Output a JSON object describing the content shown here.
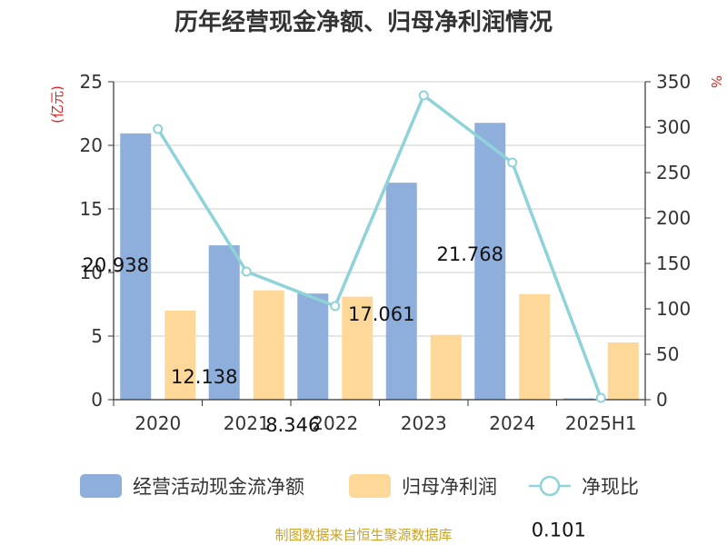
{
  "chart_data": {
    "type": "bar",
    "title": "历年经营现金净额、归母净利润情况",
    "categories": [
      "2020",
      "2021",
      "2022",
      "2023",
      "2024",
      "2025H1"
    ],
    "y_left": {
      "unit": "(亿元)",
      "range": [
        0,
        25
      ],
      "ticks": [
        0,
        5,
        10,
        15,
        20,
        25
      ]
    },
    "y_right": {
      "unit": "%",
      "range": [
        0,
        350
      ],
      "ticks": [
        0,
        50,
        100,
        150,
        200,
        250,
        300,
        350
      ]
    },
    "grid": true,
    "legend_position": "bottom",
    "series": [
      {
        "name": "经营活动现金流净额",
        "type": "bar",
        "axis": "left",
        "color": "#8eaedb",
        "values": [
          20.938,
          12.138,
          8.346,
          17.061,
          21.768,
          0.101
        ],
        "labels": [
          "20.938",
          "12.138",
          "8.346",
          "17.061",
          "21.768",
          "0.101"
        ]
      },
      {
        "name": "归母净利润",
        "type": "bar",
        "axis": "left",
        "color": "#fdd898",
        "values": [
          7.0,
          8.6,
          8.1,
          5.1,
          8.3,
          4.5
        ]
      },
      {
        "name": "净现比",
        "type": "line",
        "axis": "right",
        "color": "#8ed3d8",
        "values": [
          298,
          141,
          103,
          335,
          261,
          2
        ]
      }
    ]
  },
  "source": "制图数据来自恒生聚源数据库"
}
